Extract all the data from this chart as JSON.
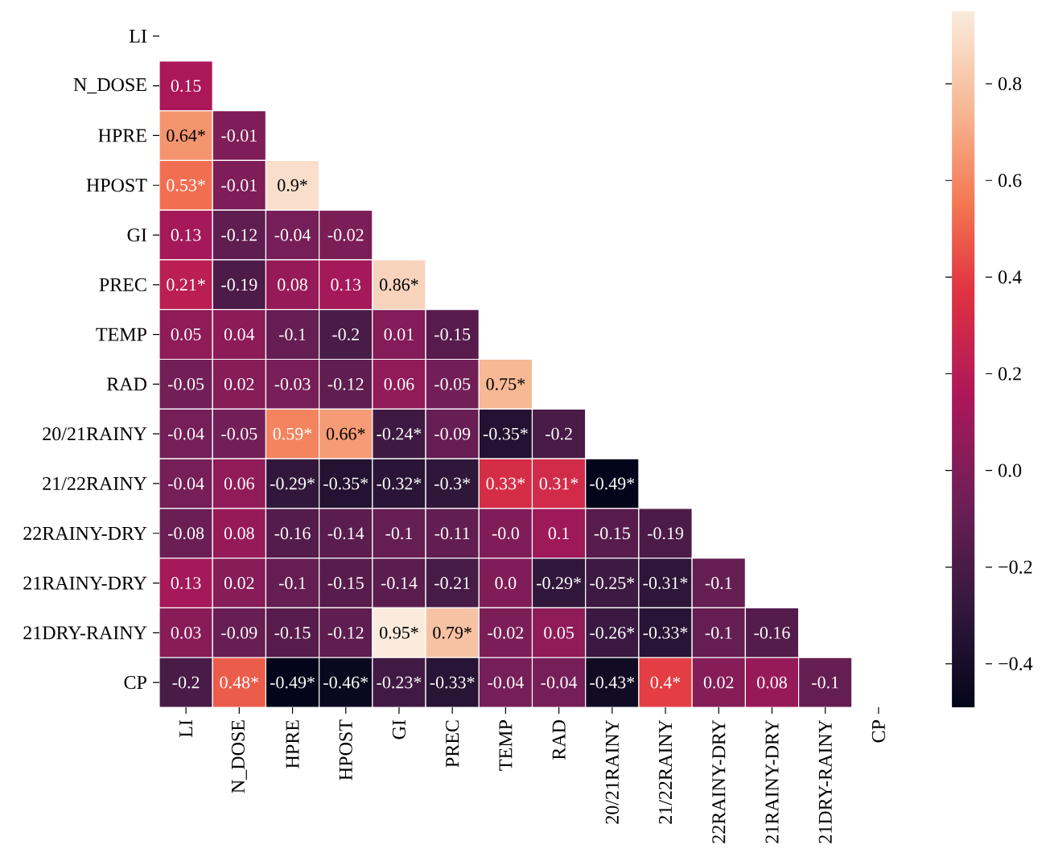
{
  "chart_data": {
    "type": "heatmap",
    "categories": [
      "LI",
      "N_DOSE",
      "HPRE",
      "HPOST",
      "GI",
      "PREC",
      "TEMP",
      "RAD",
      "20/21RAINY",
      "21/22RAINY",
      "22RAINY-DRY",
      "21RAINY-DRY",
      "21DRY-RAINY",
      "CP"
    ],
    "y_categories": [
      "LI",
      "N_DOSE",
      "HPRE",
      "HPOST",
      "GI",
      "PREC",
      "TEMP",
      "RAD",
      "20/21RAINY",
      "21/22RAINY",
      "22RAINY-DRY",
      "21RAINY-DRY",
      "21DRY-RAINY",
      "CP"
    ],
    "cells": [
      [
        null,
        null,
        null,
        null,
        null,
        null,
        null,
        null,
        null,
        null,
        null,
        null,
        null,
        null
      ],
      [
        0.15,
        null,
        null,
        null,
        null,
        null,
        null,
        null,
        null,
        null,
        null,
        null,
        null,
        null
      ],
      [
        0.64,
        -0.01,
        null,
        null,
        null,
        null,
        null,
        null,
        null,
        null,
        null,
        null,
        null,
        null
      ],
      [
        0.53,
        -0.01,
        0.9,
        null,
        null,
        null,
        null,
        null,
        null,
        null,
        null,
        null,
        null,
        null
      ],
      [
        0.13,
        -0.12,
        -0.04,
        -0.02,
        null,
        null,
        null,
        null,
        null,
        null,
        null,
        null,
        null,
        null
      ],
      [
        0.21,
        -0.19,
        0.08,
        0.13,
        0.86,
        null,
        null,
        null,
        null,
        null,
        null,
        null,
        null,
        null
      ],
      [
        0.05,
        0.04,
        -0.1,
        -0.2,
        0.01,
        -0.15,
        null,
        null,
        null,
        null,
        null,
        null,
        null,
        null
      ],
      [
        -0.05,
        0.02,
        -0.03,
        -0.12,
        0.06,
        -0.05,
        0.75,
        null,
        null,
        null,
        null,
        null,
        null,
        null
      ],
      [
        -0.04,
        -0.05,
        0.59,
        0.66,
        -0.24,
        -0.09,
        -0.35,
        -0.2,
        null,
        null,
        null,
        null,
        null,
        null
      ],
      [
        -0.04,
        0.06,
        -0.29,
        -0.35,
        -0.32,
        -0.3,
        0.33,
        0.31,
        -0.49,
        null,
        null,
        null,
        null,
        null
      ],
      [
        -0.08,
        0.08,
        -0.16,
        -0.14,
        -0.1,
        -0.11,
        0.0,
        0.1,
        -0.15,
        -0.19,
        null,
        null,
        null,
        null
      ],
      [
        0.13,
        0.02,
        -0.1,
        -0.15,
        -0.14,
        -0.21,
        0.0,
        -0.29,
        -0.25,
        -0.31,
        -0.1,
        null,
        null,
        null
      ],
      [
        0.03,
        -0.09,
        -0.15,
        -0.12,
        0.95,
        0.79,
        -0.02,
        0.05,
        -0.26,
        -0.33,
        -0.1,
        -0.16,
        null,
        null
      ],
      [
        -0.2,
        0.48,
        -0.49,
        -0.46,
        -0.23,
        -0.33,
        -0.04,
        -0.04,
        -0.43,
        0.4,
        0.02,
        0.08,
        -0.1,
        null
      ]
    ],
    "cell_labels": [
      [
        null,
        null,
        null,
        null,
        null,
        null,
        null,
        null,
        null,
        null,
        null,
        null,
        null,
        null
      ],
      [
        "0.15",
        null,
        null,
        null,
        null,
        null,
        null,
        null,
        null,
        null,
        null,
        null,
        null,
        null
      ],
      [
        "0.64*",
        "-0.01",
        null,
        null,
        null,
        null,
        null,
        null,
        null,
        null,
        null,
        null,
        null,
        null
      ],
      [
        "0.53*",
        "-0.01",
        "0.9*",
        null,
        null,
        null,
        null,
        null,
        null,
        null,
        null,
        null,
        null,
        null
      ],
      [
        "0.13",
        "-0.12",
        "-0.04",
        "-0.02",
        null,
        null,
        null,
        null,
        null,
        null,
        null,
        null,
        null,
        null
      ],
      [
        "0.21*",
        "-0.19",
        "0.08",
        "0.13",
        "0.86*",
        null,
        null,
        null,
        null,
        null,
        null,
        null,
        null,
        null
      ],
      [
        "0.05",
        "0.04",
        "-0.1",
        "-0.2",
        "0.01",
        "-0.15",
        null,
        null,
        null,
        null,
        null,
        null,
        null,
        null
      ],
      [
        "-0.05",
        "0.02",
        "-0.03",
        "-0.12",
        "0.06",
        "-0.05",
        "0.75*",
        null,
        null,
        null,
        null,
        null,
        null,
        null
      ],
      [
        "-0.04",
        "-0.05",
        "0.59*",
        "0.66*",
        "-0.24*",
        "-0.09",
        "-0.35*",
        "-0.2",
        null,
        null,
        null,
        null,
        null,
        null
      ],
      [
        "-0.04",
        "0.06",
        "-0.29*",
        "-0.35*",
        "-0.32*",
        "-0.3*",
        "0.33*",
        "0.31*",
        "-0.49*",
        null,
        null,
        null,
        null,
        null
      ],
      [
        "-0.08",
        "0.08",
        "-0.16",
        "-0.14",
        "-0.1",
        "-0.11",
        "-0.0",
        "0.1",
        "-0.15",
        "-0.19",
        null,
        null,
        null,
        null
      ],
      [
        "0.13",
        "0.02",
        "-0.1",
        "-0.15",
        "-0.14",
        "-0.21",
        "0.0",
        "-0.29*",
        "-0.25*",
        "-0.31*",
        "-0.1",
        null,
        null,
        null
      ],
      [
        "0.03",
        "-0.09",
        "-0.15",
        "-0.12",
        "0.95*",
        "0.79*",
        "-0.02",
        "0.05",
        "-0.26*",
        "-0.33*",
        "-0.1",
        "-0.16",
        null,
        null
      ],
      [
        "-0.2",
        "0.48*",
        "-0.49*",
        "-0.46*",
        "-0.23*",
        "-0.33*",
        "-0.04",
        "-0.04",
        "-0.43*",
        "0.4*",
        "0.02",
        "0.08",
        "-0.1",
        null
      ]
    ],
    "clim": [
      -0.49,
      0.95
    ],
    "cticks": [
      {
        "value": -0.4,
        "label": "−0.4"
      },
      {
        "value": -0.2,
        "label": "−0.2"
      },
      {
        "value": 0.0,
        "label": "0.0"
      },
      {
        "value": 0.2,
        "label": "0.2"
      },
      {
        "value": 0.4,
        "label": "0.4"
      },
      {
        "value": 0.6,
        "label": "0.6"
      },
      {
        "value": 0.8,
        "label": "0.8"
      }
    ]
  }
}
